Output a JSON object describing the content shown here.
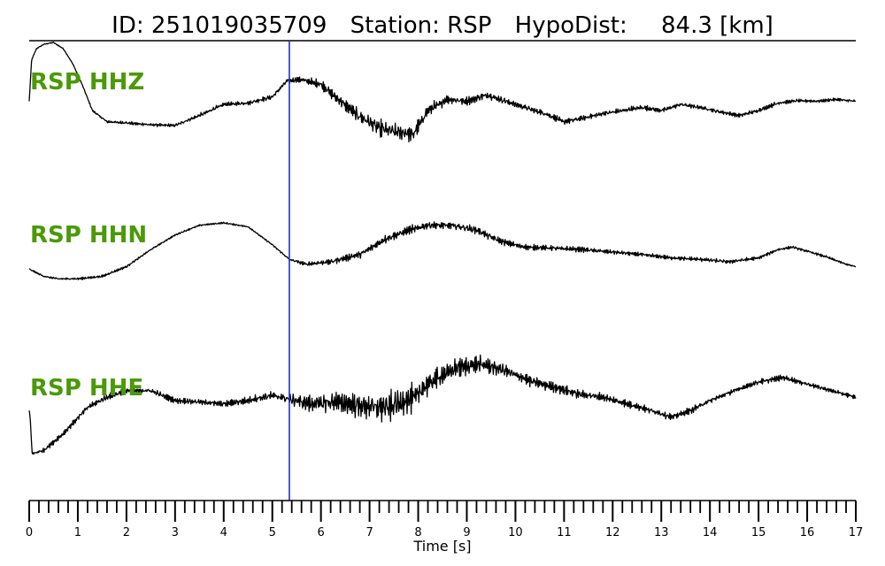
{
  "title": {
    "id_label": "ID:",
    "id_value": "251019035709",
    "station_label": "Station:",
    "station_value": "RSP",
    "hypodist_label": "HypoDist:",
    "hypodist_value": "84.3",
    "hypodist_unit": "[km]"
  },
  "colors": {
    "trace": "#000000",
    "label": "#4a9a08",
    "pick_line": "#1f2fd0",
    "axis": "#000000"
  },
  "chart_data": {
    "type": "line",
    "xlabel": "Time [s]",
    "xlim": [
      0,
      17
    ],
    "x_major_ticks": [
      0,
      1,
      2,
      3,
      4,
      5,
      6,
      7,
      8,
      9,
      10,
      11,
      12,
      13,
      14,
      15,
      16,
      17
    ],
    "x_major_tick_labels": [
      "0",
      "1",
      "2",
      "3",
      "4",
      "5",
      "6",
      "7",
      "8",
      "9",
      "10",
      "11",
      "12",
      "13",
      "14",
      "15",
      "16",
      "17"
    ],
    "x_minor_tick_step": 0.2,
    "grid": false,
    "pick_time": 5.35,
    "series": [
      {
        "name": "RSP HHZ",
        "note": "normalized amplitude, +1 = top of trace band",
        "t": [
          0.0,
          0.05,
          0.15,
          0.3,
          0.5,
          0.7,
          0.9,
          1.1,
          1.3,
          1.6,
          2.0,
          2.5,
          3.0,
          3.5,
          4.0,
          4.5,
          5.0,
          5.3,
          5.6,
          6.0,
          6.4,
          6.8,
          7.2,
          7.6,
          7.9,
          8.2,
          8.6,
          9.0,
          9.4,
          9.8,
          10.2,
          10.6,
          11.0,
          11.4,
          11.8,
          12.2,
          12.6,
          13.0,
          13.4,
          13.8,
          14.2,
          14.6,
          15.0,
          15.4,
          15.8,
          16.2,
          16.6,
          17.0
        ],
        "amp": [
          0.05,
          0.72,
          0.9,
          0.97,
          1.0,
          0.9,
          0.65,
          0.3,
          -0.1,
          -0.28,
          -0.3,
          -0.33,
          -0.34,
          -0.18,
          0.0,
          0.02,
          0.12,
          0.38,
          0.4,
          0.32,
          0.05,
          -0.2,
          -0.38,
          -0.45,
          -0.48,
          -0.1,
          0.08,
          0.05,
          0.15,
          0.05,
          -0.05,
          -0.15,
          -0.28,
          -0.22,
          -0.15,
          -0.1,
          -0.05,
          -0.1,
          0.0,
          -0.05,
          -0.12,
          -0.18,
          -0.1,
          0.02,
          0.06,
          0.05,
          0.08,
          0.05
        ],
        "noise": [
          0.0,
          0.01,
          0.01,
          0.01,
          0.01,
          0.01,
          0.01,
          0.01,
          0.02,
          0.03,
          0.03,
          0.03,
          0.03,
          0.04,
          0.04,
          0.04,
          0.05,
          0.05,
          0.06,
          0.09,
          0.12,
          0.14,
          0.16,
          0.16,
          0.15,
          0.12,
          0.09,
          0.08,
          0.08,
          0.07,
          0.06,
          0.06,
          0.06,
          0.05,
          0.05,
          0.05,
          0.05,
          0.05,
          0.04,
          0.04,
          0.04,
          0.04,
          0.04,
          0.04,
          0.03,
          0.03,
          0.03,
          0.03
        ]
      },
      {
        "name": "RSP HHN",
        "note": "normalized amplitude, +1 = top of trace band",
        "t": [
          0.0,
          0.3,
          0.6,
          1.0,
          1.5,
          2.0,
          2.5,
          3.0,
          3.5,
          4.0,
          4.5,
          5.0,
          5.35,
          5.7,
          6.2,
          6.8,
          7.3,
          7.8,
          8.2,
          8.7,
          9.2,
          9.7,
          10.2,
          10.8,
          11.4,
          12.0,
          12.6,
          13.2,
          13.8,
          14.4,
          15.0,
          15.4,
          15.7,
          16.0,
          16.4,
          16.8,
          17.0
        ],
        "amp": [
          -0.35,
          -0.5,
          -0.55,
          -0.55,
          -0.5,
          -0.3,
          0.05,
          0.35,
          0.55,
          0.6,
          0.52,
          0.15,
          -0.15,
          -0.25,
          -0.2,
          -0.05,
          0.25,
          0.45,
          0.55,
          0.55,
          0.45,
          0.22,
          0.1,
          0.08,
          0.05,
          0.0,
          -0.05,
          -0.12,
          -0.15,
          -0.2,
          -0.12,
          0.05,
          0.1,
          0.02,
          -0.1,
          -0.25,
          -0.3
        ],
        "noise": [
          0.02,
          0.02,
          0.03,
          0.03,
          0.03,
          0.03,
          0.02,
          0.02,
          0.02,
          0.02,
          0.02,
          0.02,
          0.03,
          0.05,
          0.07,
          0.09,
          0.1,
          0.1,
          0.1,
          0.1,
          0.09,
          0.08,
          0.07,
          0.06,
          0.06,
          0.05,
          0.05,
          0.05,
          0.05,
          0.05,
          0.04,
          0.03,
          0.03,
          0.03,
          0.03,
          0.02,
          0.02
        ]
      },
      {
        "name": "RSP HHE",
        "note": "normalized amplitude, +1 = top of trace band",
        "t": [
          0.0,
          0.02,
          0.06,
          0.3,
          0.7,
          1.2,
          1.6,
          2.0,
          2.5,
          3.0,
          3.5,
          4.0,
          4.5,
          5.0,
          5.35,
          5.8,
          6.3,
          6.8,
          7.3,
          7.8,
          8.3,
          8.8,
          9.3,
          9.8,
          10.3,
          10.8,
          11.3,
          11.8,
          12.3,
          12.8,
          13.2,
          13.6,
          14.0,
          14.5,
          15.0,
          15.5,
          16.0,
          16.5,
          17.0
        ],
        "amp": [
          0.05,
          -0.05,
          -0.6,
          -0.55,
          -0.3,
          0.1,
          0.25,
          0.35,
          0.35,
          0.2,
          0.18,
          0.15,
          0.2,
          0.28,
          0.22,
          0.15,
          0.18,
          0.12,
          0.1,
          0.2,
          0.5,
          0.7,
          0.75,
          0.65,
          0.5,
          0.4,
          0.3,
          0.25,
          0.15,
          0.05,
          -0.05,
          0.05,
          0.2,
          0.35,
          0.48,
          0.55,
          0.45,
          0.35,
          0.25
        ],
        "noise": [
          0.0,
          0.0,
          0.02,
          0.04,
          0.05,
          0.05,
          0.06,
          0.06,
          0.05,
          0.05,
          0.05,
          0.06,
          0.07,
          0.08,
          0.1,
          0.16,
          0.2,
          0.24,
          0.28,
          0.26,
          0.22,
          0.18,
          0.16,
          0.12,
          0.1,
          0.09,
          0.08,
          0.07,
          0.07,
          0.06,
          0.06,
          0.06,
          0.05,
          0.05,
          0.05,
          0.05,
          0.04,
          0.04,
          0.04
        ]
      }
    ]
  }
}
